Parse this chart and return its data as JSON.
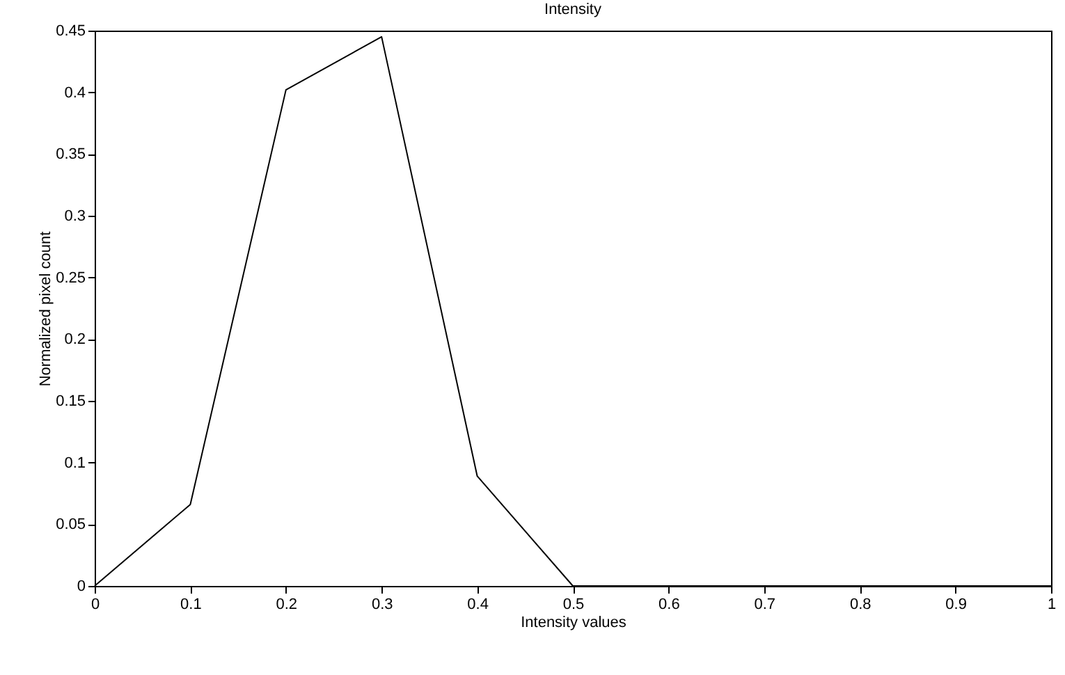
{
  "chart_data": {
    "type": "line",
    "title": "Intensity",
    "xlabel": "Intensity values",
    "ylabel": "Normalized pixel count",
    "x": [
      0,
      0.1,
      0.2,
      0.3,
      0.4,
      0.5,
      0.6,
      0.7,
      0.8,
      0.9,
      1
    ],
    "series": [
      {
        "color": "#000000",
        "values": [
          0,
          0.066,
          0.402,
          0.445,
          0.089,
          0,
          0,
          0,
          0,
          0,
          0
        ]
      }
    ],
    "xlim": [
      0,
      1
    ],
    "xticks": [
      0,
      0.1,
      0.2,
      0.3,
      0.4,
      0.5,
      0.6,
      0.7,
      0.8,
      0.9,
      1
    ],
    "ylim": [
      0,
      0.45
    ],
    "yticks": [
      0,
      0.05,
      0.1,
      0.15,
      0.2,
      0.25,
      0.3,
      0.35,
      0.4,
      0.45
    ],
    "grid": false,
    "marker": "none",
    "line_style": "solid"
  }
}
